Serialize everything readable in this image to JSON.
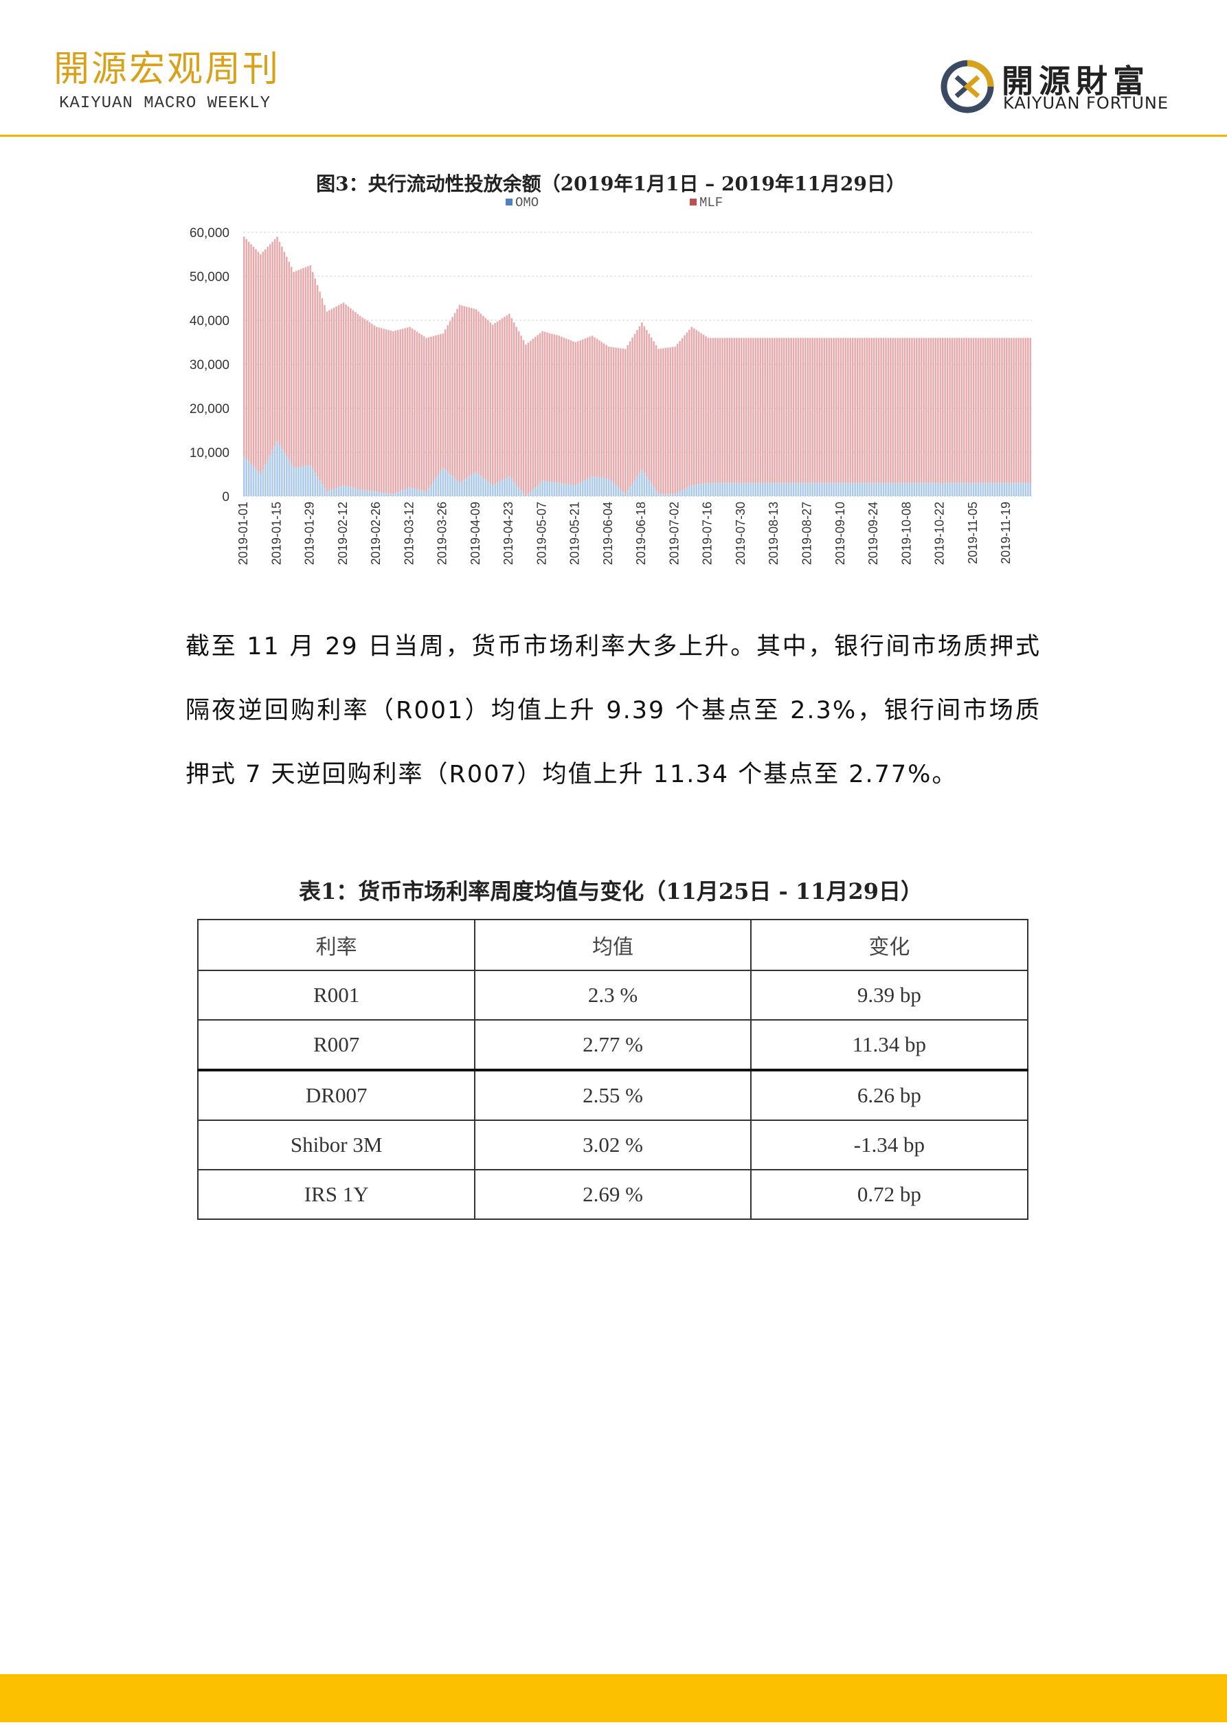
{
  "header": {
    "title": "開源宏观周刊",
    "subtitle": "KAIYUAN MACRO WEEKLY",
    "logo_cn": "開源財富",
    "logo_en": "KAIYUAN FORTUNE"
  },
  "colors": {
    "accent": "#f3b400",
    "footer": "#fdc000",
    "omo": "#a9c8ea",
    "mlf": "#e9a8aa"
  },
  "chart_data": {
    "type": "bar",
    "stacked": true,
    "title": "图3：央行流动性投放余额（2019年1月1日 – 2019年11月29日）",
    "legend": [
      "OMO",
      "MLF"
    ],
    "legend_position": "top",
    "ytick_labels": [
      "0",
      "10,000",
      "20,000",
      "30,000",
      "40,000",
      "50,000",
      "60,000"
    ],
    "ylim": [
      0,
      60000
    ],
    "xtick_labels": [
      "2019-01-01",
      "2019-01-15",
      "2019-01-29",
      "2019-02-12",
      "2019-02-26",
      "2019-03-12",
      "2019-03-26",
      "2019-04-09",
      "2019-04-23",
      "2019-05-07",
      "2019-05-21",
      "2019-06-04",
      "2019-06-18",
      "2019-07-02",
      "2019-07-16",
      "2019-07-30",
      "2019-08-13",
      "2019-08-27",
      "2019-09-10",
      "2019-09-24",
      "2019-10-08",
      "2019-10-22",
      "2019-11-05",
      "2019-11-19"
    ],
    "grid": true,
    "weekly_omo": [
      9000,
      5000,
      12500,
      6500,
      7000,
      1000,
      2500,
      1500,
      1000,
      500,
      2000,
      1000,
      6500,
      3000,
      5500,
      2500,
      4500,
      0,
      3500,
      3000,
      2500,
      4500,
      4000,
      500,
      6000,
      500,
      500,
      2500,
      3000
    ],
    "weekly_total": [
      59000,
      55000,
      59000,
      51000,
      52500,
      42000,
      44000,
      41000,
      38500,
      37500,
      38500,
      36000,
      37000,
      43500,
      42500,
      39000,
      41500,
      34500,
      37500,
      36500,
      35000,
      36500,
      34000,
      33500,
      39500,
      33500,
      34000,
      38500,
      36000
    ]
  },
  "paragraph": "截至 11 月 29 日当周，货币市场利率大多上升。其中，银行间市场质押式隔夜逆回购利率（R001）均值上升 9.39 个基点至 2.3%，银行间市场质押式 7 天逆回购利率（R007）均值上升 11.34 个基点至 2.77%。",
  "table": {
    "title": "表1：货币市场利率周度均值与变化（11月25日 - 11月29日）",
    "headers": [
      "利率",
      "均值",
      "变化"
    ],
    "rows": [
      [
        "R001",
        "2.3 %",
        "9.39 bp"
      ],
      [
        "R007",
        "2.77 %",
        "11.34 bp"
      ],
      [
        "DR007",
        "2.55 %",
        "6.26 bp"
      ],
      [
        "Shibor 3M",
        "3.02 %",
        "-1.34 bp"
      ],
      [
        "IRS 1Y",
        "2.69 %",
        "0.72 bp"
      ]
    ]
  }
}
